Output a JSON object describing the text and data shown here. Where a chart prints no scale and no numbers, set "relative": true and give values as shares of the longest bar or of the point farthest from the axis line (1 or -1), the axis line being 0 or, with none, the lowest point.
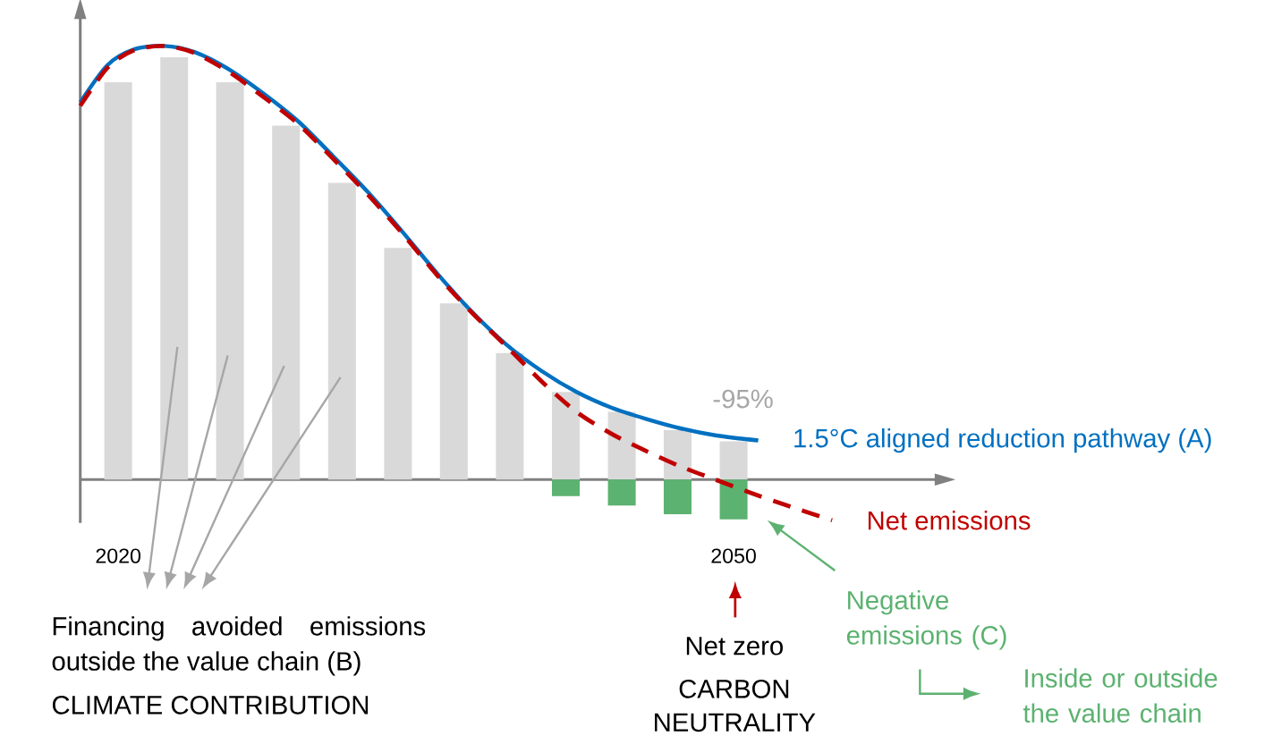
{
  "chart_data": {
    "type": "bar",
    "relative": true,
    "xlim": [
      2018.15,
      2060.31
    ],
    "xticks": [
      2020,
      2050
    ],
    "series": [
      {
        "color": "#d9d9d9",
        "x": [
          2020,
          2022.73,
          2025.45,
          2028.18,
          2030.91,
          2033.64,
          2036.36,
          2039.09,
          2041.82,
          2044.55,
          2047.27,
          2050
        ],
        "values": [
          0.916,
          0.974,
          0.916,
          0.816,
          0.684,
          0.534,
          0.406,
          0.292,
          0.202,
          0.156,
          0.114,
          0.088
        ]
      },
      {
        "name": "Negative emissions (C)",
        "color": "#5cb270",
        "x": [
          2041.82,
          2044.55,
          2047.27,
          2050
        ],
        "values": [
          -0.038,
          -0.06,
          -0.08,
          -0.092
        ]
      },
      {
        "type": "line",
        "name": "1.5°C aligned reduction pathway (A)",
        "color": "#0070c0",
        "line_style": "solid",
        "x": [
          2018.15,
          2019.48,
          2020.76,
          2022.24,
          2023.71,
          2025.4,
          2027.09,
          2028.78,
          2030.47,
          2032.19,
          2033.88,
          2035.57,
          2037.26,
          2038.95,
          2040.65,
          2042.34,
          2044.03,
          2045.72,
          2047.41,
          2049.1,
          2051.2
        ],
        "values": [
          0.87,
          0.956,
          0.992,
          1.0,
          0.986,
          0.946,
          0.89,
          0.826,
          0.746,
          0.662,
          0.57,
          0.474,
          0.386,
          0.31,
          0.25,
          0.202,
          0.166,
          0.14,
          0.118,
          0.102,
          0.09
        ]
      },
      {
        "type": "line",
        "name": "Net emissions",
        "color": "#c00000",
        "line_style": "dashed",
        "x": [
          2018.15,
          2019.48,
          2020.76,
          2022.24,
          2023.71,
          2025.4,
          2027.09,
          2028.78,
          2030.47,
          2032.19,
          2033.88,
          2035.57,
          2037.26,
          2038.95,
          2040.65,
          2042.34,
          2044.03,
          2045.72,
          2047.41,
          2049.1,
          2050.79,
          2052.48,
          2054.8
        ],
        "values": [
          0.862,
          0.95,
          0.99,
          1.0,
          0.984,
          0.94,
          0.882,
          0.82,
          0.74,
          0.656,
          0.566,
          0.47,
          0.384,
          0.306,
          0.226,
          0.156,
          0.106,
          0.066,
          0.03,
          0.0,
          -0.03,
          -0.058,
          -0.094
        ]
      }
    ],
    "annotations": [
      "-95%",
      "Financing avoided emissions outside the value chain (B)",
      "CLIMATE CONTRIBUTION",
      "Net zero",
      "CARBON NEUTRALITY",
      "Inside or outside the value chain"
    ]
  }
}
